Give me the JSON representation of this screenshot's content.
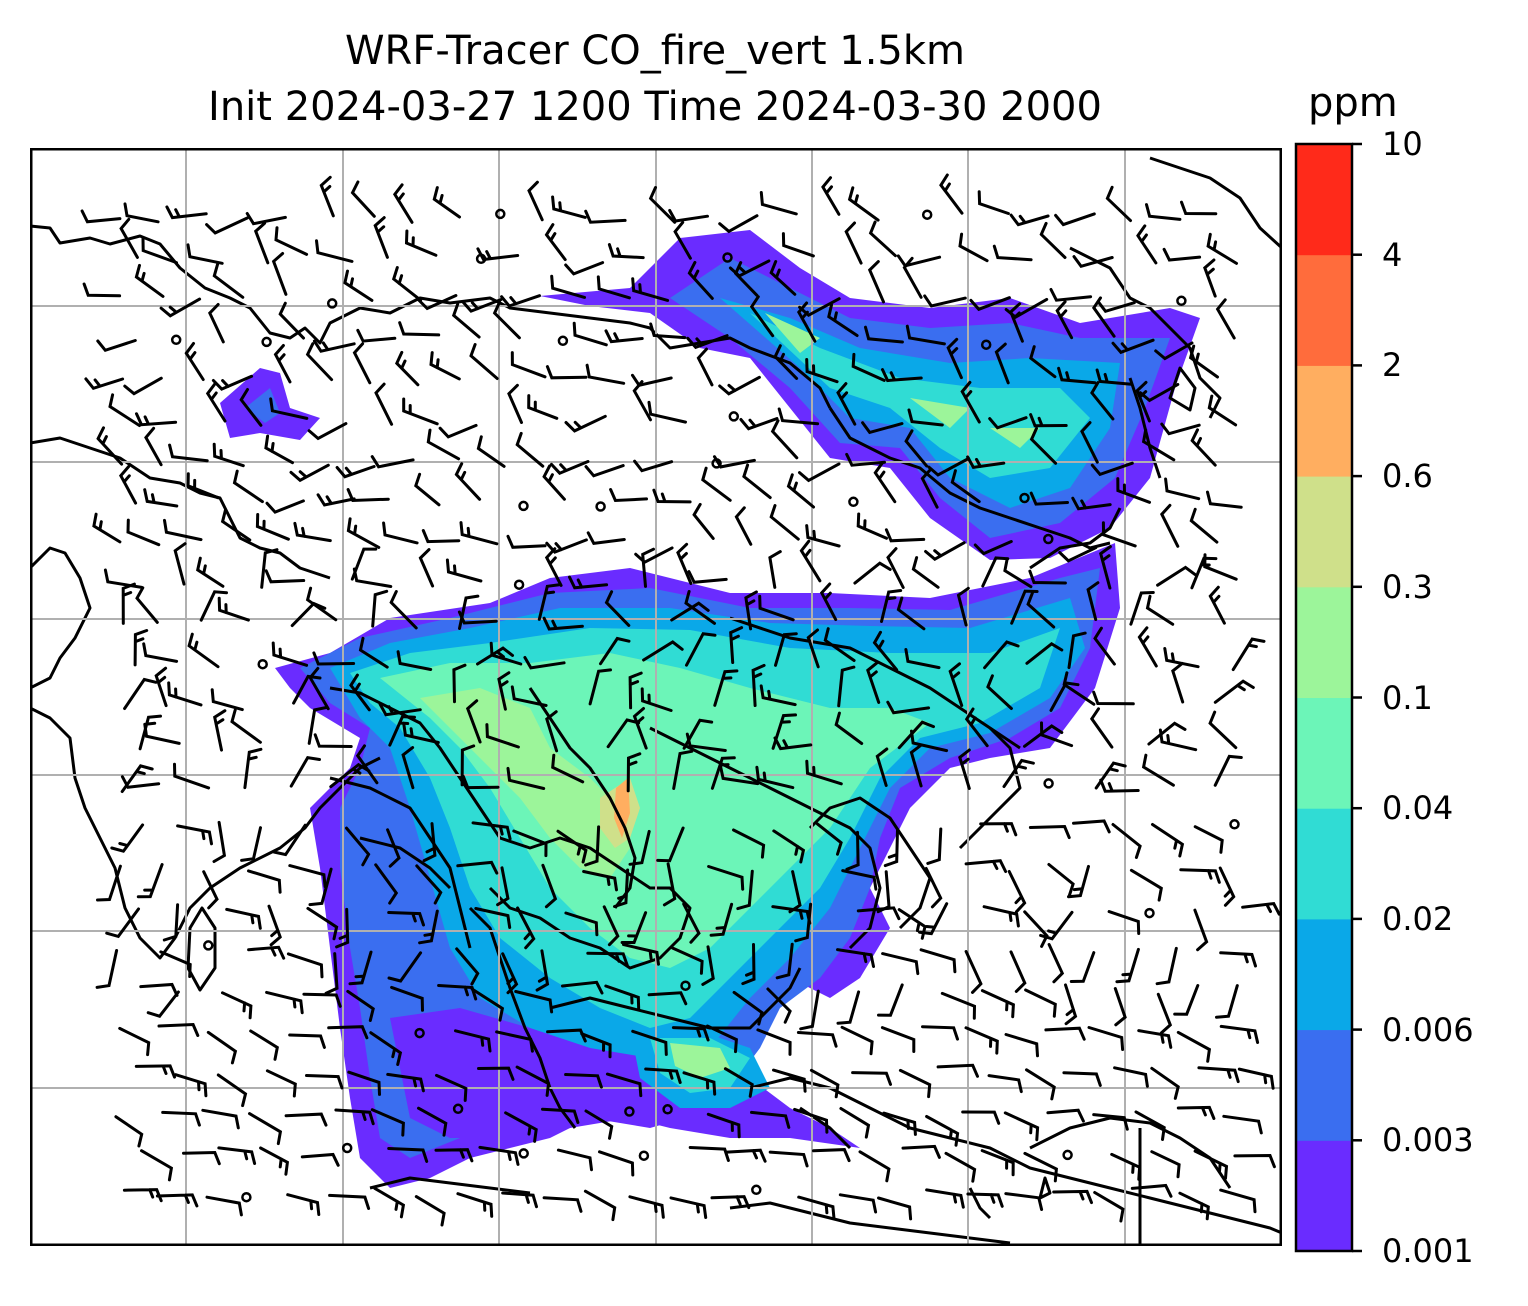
{
  "title": {
    "line1": "WRF-Tracer CO_fire_vert 1.5km",
    "line2": "Init 2024-03-27 1200 Time 2024-03-30 2000"
  },
  "colorbar": {
    "unit": "ppm",
    "levels": [
      "0.001",
      "0.003",
      "0.006",
      "0.02",
      "0.04",
      "0.1",
      "0.3",
      "0.6",
      "2",
      "4",
      "10"
    ],
    "colors": [
      "#6a2cff",
      "#3a6ef0",
      "#0aa8e8",
      "#30dcd4",
      "#6cf5b8",
      "#9cf59a",
      "#cfe08a",
      "#ffae60",
      "#ff6c3c",
      "#ff2a1a"
    ]
  },
  "map": {
    "gridlines": "on",
    "coastlines": "black",
    "barb_color": "#000000"
  }
}
